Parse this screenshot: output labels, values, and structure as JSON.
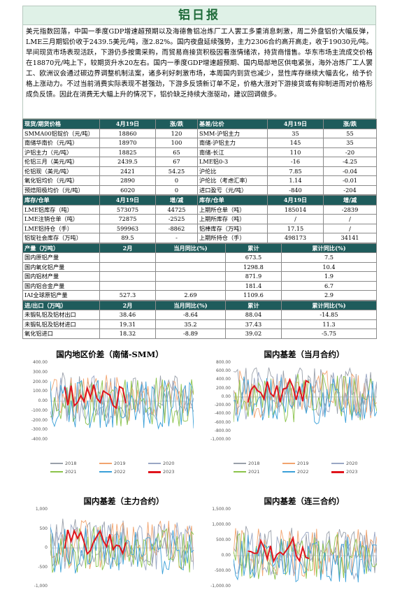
{
  "title": "铝日报",
  "summary": "美元指数回落，中国一季度GDP增速超预期以及海德鲁铝冶炼厂工人罢工多重消息刺激，周二外盘铝价大幅反弹，LME三月期铝价收于2439.5美元/吨，涨2.82%。国内夜盘延续强势，主力2306合约高开高走，收于19030元/吨。早间现货市场表现活跃，下游仍多按需采购，而贸易商接货积极因看涨情绪浓，持货商惜售。华东市场主流成交价格在18870元/吨上下，较期货升水20左右。国内一季度GDP增速超预期、国内局部地区供电紧张，海外冶炼厂工人罢工、欧洲议会通过碳边界调整机制法案，诸多利好刺激市场，本周国内到货也减少，显性库存继续大幅去化，给予价格上涨动力。不过当前消费实际表现不甚强劲，下游多反馈新订单不足，价格大涨对下游接货或有抑制进而对价格形成负反馈。因此在消费无大幅上升的情况下，铝价缺乏持续大涨驱动，建议回调做多。",
  "price_table": {
    "header": [
      "现货/期货价格",
      "4月19日",
      "涨/跌",
      "基差/比价",
      "4月19日",
      "涨/跌"
    ],
    "rows": [
      [
        "SMMA00铝锭价（元/吨）",
        "18860",
        "120",
        "SMM-沪铝主力",
        "35",
        "55"
      ],
      [
        "南储华南价（元/吨）",
        "18970",
        "100",
        "南储-沪铝主力",
        "145",
        "35"
      ],
      [
        "沪铝主力（元/吨）",
        "18825",
        "65",
        "南储-长江",
        "110",
        "-20"
      ],
      [
        "伦铝三月（美元/吨）",
        "2439.5",
        "67",
        "LME铝0-3",
        "-16",
        "-4.25"
      ],
      [
        "伦铝现（美元/吨）",
        "2421",
        "54.25",
        "沪伦比",
        "7.85",
        "-0.04"
      ],
      [
        "氧化铝均价（元/吨）",
        "2890",
        "0",
        "沪伦比（考虑汇率）",
        "1.14",
        "-0.01"
      ],
      [
        "预焙阳极均价（元/吨）",
        "6020",
        "0",
        "进口盈亏（元/吨）",
        "-840",
        "-204"
      ]
    ]
  },
  "stock_table": {
    "header": [
      "库存/仓单",
      "4月19日",
      "增/减",
      "库存/仓单",
      "4月19日",
      "增/减"
    ],
    "rows": [
      [
        "LME铝库存（吨）",
        "573075",
        "44725",
        "上期所仓单（吨）",
        "185014",
        "-2839"
      ],
      [
        "LME注销仓单（吨）",
        "72875",
        "-2525",
        "上期所库存（吨）",
        "/",
        "/"
      ],
      [
        "LME铝持仓（手）",
        "599963",
        "-8862",
        "铝棒库存（万吨）",
        "17.15",
        "/"
      ],
      [
        "铝锭社会库存（万吨）",
        "89.5",
        "-",
        "上期所持仓（手）",
        "498173",
        "34141"
      ]
    ]
  },
  "output_table": {
    "header": [
      "产量（万吨）",
      "2月",
      "当月同比(%)",
      "累计",
      "累计同比(%)"
    ],
    "rows": [
      [
        "国内原铝产量",
        "",
        "",
        "673.5",
        "7.5"
      ],
      [
        "国内氧化铝产量",
        "",
        "",
        "1298.8",
        "10.4"
      ],
      [
        "国内铝材产量",
        "",
        "",
        "871.9",
        "1.9"
      ],
      [
        "国内铝合金产量",
        "",
        "",
        "181.4",
        "6.7"
      ],
      [
        "IAI全球原铝产量",
        "527.3",
        "2.69",
        "1109.6",
        "2.9"
      ]
    ]
  },
  "trade_table": {
    "header": [
      "进/出口（万吨）",
      "2月",
      "当月同比(%)",
      "累计",
      "累计同比(%)"
    ],
    "rows": [
      [
        "未锻轧铝及铝材出口",
        "38.46",
        "-8.64",
        "88.04",
        "-14.85"
      ],
      [
        "未锻轧铝及铝材进口",
        "19.31",
        "35.2",
        "37.43",
        "11.3"
      ],
      [
        "氧化铝进口",
        "18.32",
        "-8.89",
        "39.02",
        "-5.75"
      ]
    ]
  },
  "charts": [
    {
      "title": "国内地区价差（南储-SMM）",
      "yticks": [
        "400.00",
        "300.00",
        "200.00",
        "100.00",
        "0.00",
        "-100.00",
        "-200.00",
        "-300.00",
        "-400.00"
      ],
      "legend": [
        "2018",
        "2019",
        "2020",
        "2021",
        "2022",
        "2023"
      ],
      "colors": [
        "#9aa0aa",
        "#f2a46f",
        "#9aa7c4",
        "#8bc34a",
        "#3aa0d8",
        "#e0151c"
      ]
    },
    {
      "title": "国内基差（当月合约）",
      "yticks": [
        "800.00",
        "600.00",
        "400.00",
        "200.00",
        "0.00",
        "-200.00",
        "-400.00",
        "-600.00",
        "-800.00",
        "-1,000.00"
      ],
      "legend": [
        "2018",
        "2019",
        "2020",
        "2021",
        "2022",
        "2023"
      ],
      "colors": [
        "#9aa0aa",
        "#f2a46f",
        "#9aa7c4",
        "#8bc34a",
        "#3aa0d8",
        "#e0151c"
      ]
    },
    {
      "title": "国内基差（主力合约）",
      "yticks": [
        "1,000",
        "500",
        "0",
        "-500",
        "-1,000"
      ],
      "legend": [],
      "colors": [
        "#9aa0aa",
        "#f2a46f",
        "#9aa7c4",
        "#8bc34a",
        "#3aa0d8",
        "#e0151c"
      ]
    },
    {
      "title": "国内基差（连三合约）",
      "yticks": [
        "1,500.00",
        "1,000.00",
        "500.00",
        "0.00",
        "-500.00",
        "-1,000.00"
      ],
      "legend": [],
      "colors": [
        "#9aa0aa",
        "#f2a46f",
        "#9aa7c4",
        "#8bc34a",
        "#3aa0d8",
        "#e0151c"
      ]
    }
  ]
}
